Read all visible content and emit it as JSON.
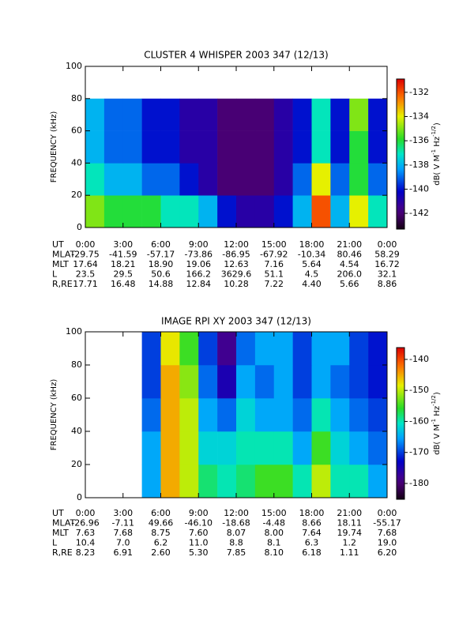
{
  "chart_data": [
    {
      "type": "heatmap",
      "title": "CLUSTER 4 WHISPER 2003 347 (12/13)",
      "ylabel": "FREQUENCY (kHz)",
      "xlim": [
        0,
        24
      ],
      "xticks": [
        {
          "value": 0,
          "label": "0:00"
        },
        {
          "value": 3,
          "label": "3:00"
        },
        {
          "value": 6,
          "label": "6:00"
        },
        {
          "value": 9,
          "label": "9:00"
        },
        {
          "value": 12,
          "label": "12:00"
        },
        {
          "value": 15,
          "label": "15:00"
        },
        {
          "value": 18,
          "label": "18:00"
        },
        {
          "value": 21,
          "label": "21:00"
        },
        {
          "value": 24,
          "label": "0:00"
        }
      ],
      "ylim": [
        0,
        100
      ],
      "yticks": [
        0,
        20,
        40,
        60,
        80,
        100
      ],
      "x_bins": [
        0,
        1.5,
        3,
        4.5,
        6,
        7.5,
        9,
        10.5,
        12,
        13.5,
        15,
        16.5,
        18,
        19.5,
        21,
        22.5,
        24
      ],
      "y_bins": [
        0,
        20,
        40,
        60,
        80
      ],
      "z": [
        [
          -135,
          -136,
          -136,
          -136,
          -137,
          -137,
          -138,
          -140,
          -141,
          -141,
          -140,
          -138,
          -132,
          -138,
          -134,
          -137
        ],
        [
          -137,
          -138,
          -138,
          -139,
          -139,
          -140,
          -141,
          -142,
          -142,
          -142,
          -141,
          -139,
          -134,
          -139,
          -136,
          -139
        ],
        [
          -138,
          -139,
          -139,
          -140,
          -140,
          -141,
          -141,
          -142,
          -142,
          -142,
          -141,
          -140,
          -137,
          -140,
          -136,
          -140
        ],
        [
          -138,
          -139,
          -139,
          -140,
          -140,
          -141,
          -141,
          -142,
          -142,
          -142,
          -141,
          -140,
          -137,
          -140,
          -135,
          -140
        ]
      ],
      "zlim": [
        -143.3,
        -130.9
      ],
      "zticks": [
        -142,
        -140,
        -138,
        -136,
        -134,
        -132
      ],
      "cbar_label": [
        "dB( V M",
        "-1",
        " Hz",
        "-1/2",
        ")"
      ],
      "xlabel": "UT",
      "ephemeris": [
        {
          "label": "MLAT",
          "values": [
            "-29.75",
            "-41.59",
            "-57.17",
            "-73.86",
            "-86.95",
            "-67.92",
            "-10.34",
            "80.46",
            "58.29"
          ]
        },
        {
          "label": "MLT",
          "values": [
            "17.64",
            "18.21",
            "18.90",
            "19.06",
            "12.63",
            "7.16",
            "5.64",
            "4.54",
            "16.72"
          ]
        },
        {
          "label": "L",
          "values": [
            "23.5",
            "29.5",
            "50.6",
            "166.2",
            "3629.6",
            "51.1",
            "4.5",
            "206.0",
            "32.1"
          ]
        },
        {
          "label": "R,RE",
          "values": [
            "17.71",
            "16.48",
            "14.88",
            "12.84",
            "10.28",
            "7.22",
            "4.40",
            "5.66",
            "8.86"
          ]
        }
      ]
    },
    {
      "type": "heatmap",
      "title": "IMAGE RPI XY 2003 347 (12/13)",
      "ylabel": "FREQUENCY (kHz)",
      "xlim": [
        0,
        24
      ],
      "xticks": [
        {
          "value": 0,
          "label": "0:00"
        },
        {
          "value": 3,
          "label": "3:00"
        },
        {
          "value": 6,
          "label": "6:00"
        },
        {
          "value": 9,
          "label": "9:00"
        },
        {
          "value": 12,
          "label": "12:00"
        },
        {
          "value": 15,
          "label": "15:00"
        },
        {
          "value": 18,
          "label": "18:00"
        },
        {
          "value": 21,
          "label": "21:00"
        },
        {
          "value": 24,
          "label": "0:00"
        }
      ],
      "ylim": [
        0,
        100
      ],
      "yticks": [
        0,
        20,
        40,
        60,
        80,
        100
      ],
      "x_bins": [
        0,
        1.5,
        3,
        4.5,
        6,
        7.5,
        9,
        10.5,
        12,
        13.5,
        15,
        16.5,
        18,
        19.5,
        21,
        22.5,
        24
      ],
      "y_bins": [
        0,
        20,
        40,
        60,
        80,
        100
      ],
      "z": [
        [
          null,
          null,
          null,
          -165,
          -145,
          -150,
          -158,
          -160,
          -158,
          -155,
          -155,
          -160,
          -150,
          -160,
          -160,
          -165
        ],
        [
          null,
          null,
          null,
          -165,
          -145,
          -150,
          -162,
          -162,
          -160,
          -160,
          -160,
          -165,
          -155,
          -162,
          -165,
          -168
        ],
        [
          null,
          null,
          null,
          -168,
          -145,
          -150,
          -165,
          -168,
          -162,
          -165,
          -165,
          -168,
          -160,
          -165,
          -168,
          -170
        ],
        [
          null,
          null,
          null,
          -170,
          -145,
          -152,
          -168,
          -175,
          -165,
          -168,
          -165,
          -170,
          -165,
          -168,
          -170,
          -172
        ],
        [
          null,
          null,
          null,
          -170,
          -148,
          -155,
          -170,
          -178,
          -168,
          -165,
          -165,
          -170,
          -165,
          -165,
          -170,
          -172
        ]
      ],
      "zlim": [
        -185.1,
        -136.2
      ],
      "zticks": [
        -180,
        -170,
        -160,
        -150,
        -140
      ],
      "cbar_label": [
        "dB( V M",
        "-1",
        " Hz",
        "-1/2",
        ")"
      ],
      "xlabel": "UT",
      "ephemeris": [
        {
          "label": "MLAT",
          "values": [
            "-26.96",
            "-7.11",
            "49.66",
            "-46.10",
            "-18.68",
            "-4.48",
            "8.66",
            "18.11",
            "-55.17"
          ]
        },
        {
          "label": "MLT",
          "values": [
            "7.63",
            "7.68",
            "8.75",
            "7.60",
            "8.07",
            "8.00",
            "7.64",
            "19.74",
            "7.68"
          ]
        },
        {
          "label": "L",
          "values": [
            "10.4",
            "7.0",
            "6.2",
            "11.0",
            "8.8",
            "8.1",
            "6.3",
            "1.2",
            "19.0"
          ]
        },
        {
          "label": "R,RE",
          "values": [
            "8.23",
            "6.91",
            "2.60",
            "5.30",
            "7.85",
            "8.10",
            "6.18",
            "1.11",
            "6.20"
          ]
        }
      ]
    }
  ]
}
